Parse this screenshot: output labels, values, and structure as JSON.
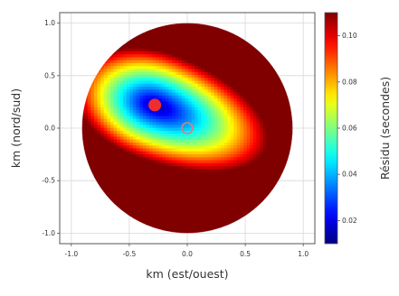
{
  "chart_data": {
    "type": "heatmap",
    "title": "",
    "xlabel": "km (est/ouest)",
    "ylabel": "km (nord/sud)",
    "colorbar_label": "Résidu (secondes)",
    "xlim": [
      -1.1,
      1.1
    ],
    "ylim": [
      -1.1,
      1.1
    ],
    "x_ticks": [
      -1.0,
      -0.5,
      0.0,
      0.5,
      1.0
    ],
    "x_tick_labels": [
      "-1.0",
      "-0.5",
      "0.0",
      "0.5",
      "1.0"
    ],
    "y_ticks": [
      -1.0,
      -0.5,
      0.0,
      0.5,
      1.0
    ],
    "y_tick_labels": [
      "-1.0",
      "-0.5",
      "0.0",
      "0.5",
      "1.0"
    ],
    "colorbar_range": [
      0.01,
      0.11
    ],
    "colorbar_ticks": [
      0.02,
      0.04,
      0.06,
      0.08,
      0.1
    ],
    "colorbar_tick_labels": [
      "0.02",
      "0.04",
      "0.06",
      "0.08",
      "0.10"
    ],
    "colormap": "jet",
    "grid": true,
    "field": {
      "domain": "disk",
      "radius": 1.0,
      "minimum": {
        "x": -0.28,
        "y": 0.22,
        "value": 0.012
      },
      "maximum_value": 0.11
    },
    "markers": [
      {
        "name": "best-fit",
        "x": -0.28,
        "y": 0.22,
        "shape": "filled-circle",
        "color": "#ee2e2e"
      },
      {
        "name": "origin",
        "x": 0.0,
        "y": 0.0,
        "shape": "open-circle",
        "color": "#d97f7f"
      }
    ]
  }
}
